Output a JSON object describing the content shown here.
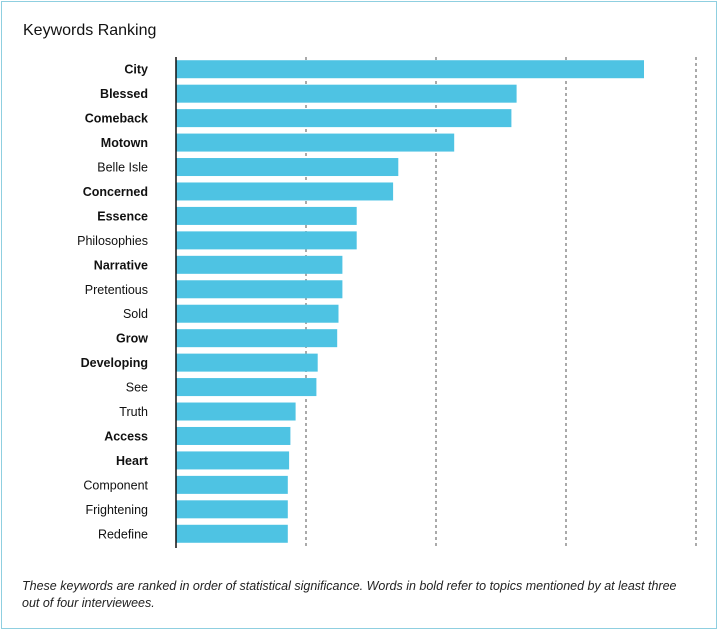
{
  "chart_data": {
    "type": "bar",
    "orientation": "horizontal",
    "title": "Keywords Ranking",
    "xlabel": "",
    "ylabel": "",
    "xlim": [
      0,
      4
    ],
    "gridlines": [
      1,
      2,
      3,
      4
    ],
    "grid": "vertical-dashed",
    "axis_tick_labels_shown": false,
    "bar_color": "#4ec3e3",
    "categories": [
      "City",
      "Blessed",
      "Comeback",
      "Motown",
      "Belle Isle",
      "Concerned",
      "Essence",
      "Philosophies",
      "Narrative",
      "Pretentious",
      "Sold",
      "Grow",
      "Developing",
      "See",
      "Truth",
      "Access",
      "Heart",
      "Component",
      "Frightening",
      "Redefine"
    ],
    "bold": [
      true,
      true,
      true,
      true,
      false,
      true,
      true,
      false,
      true,
      false,
      false,
      true,
      true,
      false,
      false,
      true,
      true,
      false,
      false,
      false
    ],
    "values": [
      3.6,
      2.62,
      2.58,
      2.14,
      1.71,
      1.67,
      1.39,
      1.39,
      1.28,
      1.28,
      1.25,
      1.24,
      1.09,
      1.08,
      0.92,
      0.88,
      0.87,
      0.86,
      0.86,
      0.86
    ]
  },
  "footnote": "These keywords are ranked in order of statistical significance. Words in bold refer to topics mentioned by at least three out of four interviewees."
}
